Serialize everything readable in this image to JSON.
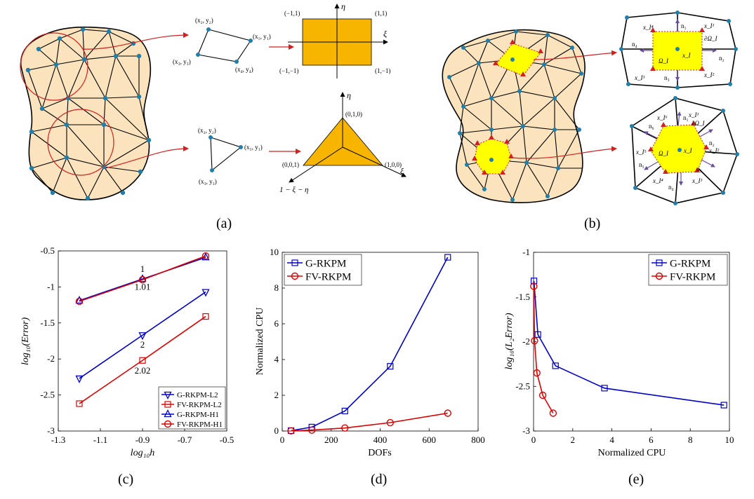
{
  "panel_labels": [
    "(a)",
    "(b)",
    "(c)",
    "(d)",
    "(e)"
  ],
  "panel_a": {
    "quad_nodes": [
      "(x₂, y₂)",
      "(x₁, y₁)",
      "(x₃, y₃)",
      "(x₄, y₄)"
    ],
    "tri_nodes": [
      "(x₂, y₂)",
      "(x₁, y₁)",
      "(x₃, y₃)"
    ],
    "quad_ref_corners": [
      "(−1,1)",
      "(1,1)",
      "(−1,−1)",
      "(1,−1)"
    ],
    "tri_ref_corners": [
      "(0,1,0)",
      "(0,0,1)",
      "(1,0,0)"
    ],
    "axis_eta": "η",
    "axis_xi": "ξ",
    "tri_third_axis": "1 − ξ − η"
  },
  "panel_b": {
    "quad_cell_labels": [
      "x_I⁴",
      "n₁",
      "x_I¹",
      "∂Ω_I",
      "n₄",
      "x_I",
      "n₂",
      "Ω_I",
      "x_I³",
      "n₃",
      "x_I²"
    ],
    "hex_cell_labels": [
      "x_I⁶",
      "x_I¹",
      "∂Ω_I",
      "n₆",
      "n₁",
      "x_I⁵",
      "x_I",
      "x_I²",
      "Ω_I",
      "n₅",
      "n₂",
      "x_I⁴",
      "n₄",
      "x_I³",
      "n₃"
    ]
  },
  "chart_data": [
    {
      "type": "line",
      "panel": "(c)",
      "xlabel": "log₁₀h",
      "ylabel": "log₁₀(Error)",
      "xlim": [
        -1.3,
        -0.5
      ],
      "ylim": [
        -3,
        -0.5
      ],
      "xticks": [
        "-1.3",
        "-1.1",
        "-0.9",
        "-0.7",
        "-0.5"
      ],
      "yticks": [
        "-0.5",
        "-1",
        "-1.5",
        "-2",
        "-2.5",
        "-3"
      ],
      "series": [
        {
          "name": "G-RKPM-L2",
          "color": "#0000cc",
          "marker": "triangle-down",
          "x": [
            -1.2,
            -0.9,
            -0.6
          ],
          "y": [
            -2.27,
            -1.67,
            -1.07
          ]
        },
        {
          "name": "FV-RKPM-L2",
          "color": "#dd0000",
          "marker": "square",
          "x": [
            -1.2,
            -0.9,
            -0.6
          ],
          "y": [
            -2.62,
            -2.02,
            -1.41
          ]
        },
        {
          "name": "G-RKPM-H1",
          "color": "#0000cc",
          "marker": "triangle-up",
          "x": [
            -1.2,
            -0.9,
            -0.6
          ],
          "y": [
            -1.19,
            -0.89,
            -0.59
          ]
        },
        {
          "name": "FV-RKPM-H1",
          "color": "#dd0000",
          "marker": "circle",
          "x": [
            -1.2,
            -0.9,
            -0.6
          ],
          "y": [
            -1.2,
            -0.9,
            -0.57
          ]
        }
      ],
      "annotations": [
        {
          "text": "1",
          "x": -0.9,
          "y": -0.79
        },
        {
          "text": "1.01",
          "x": -0.9,
          "y": -1.04
        },
        {
          "text": "2",
          "x": -0.9,
          "y": -1.84
        },
        {
          "text": "2.02",
          "x": -0.9,
          "y": -2.2
        }
      ],
      "legend": "bottom-right"
    },
    {
      "type": "line",
      "panel": "(d)",
      "xlabel": "DOFs",
      "ylabel": "Normalized CPU",
      "xlim": [
        0,
        800
      ],
      "ylim": [
        0,
        10
      ],
      "xticks": [
        "0",
        "200",
        "400",
        "600",
        "800"
      ],
      "yticks": [
        "10",
        "8",
        "6",
        "4",
        "2",
        "0"
      ],
      "series": [
        {
          "name": "G-RKPM",
          "color": "#0000cc",
          "marker": "square",
          "x": [
            36,
            121,
            256,
            441,
            676
          ],
          "y": [
            0.02,
            0.22,
            1.12,
            3.62,
            9.72
          ]
        },
        {
          "name": "FV-RKPM",
          "color": "#dd0000",
          "marker": "circle",
          "x": [
            36,
            121,
            256,
            441,
            676
          ],
          "y": [
            0.01,
            0.05,
            0.17,
            0.47,
            1.0
          ]
        }
      ],
      "legend": "top-left"
    },
    {
      "type": "line",
      "panel": "(e)",
      "xlabel": "Normalized CPU",
      "ylabel": "log₁₀(L₂Error)",
      "xlim": [
        0,
        10
      ],
      "ylim": [
        -3,
        -1
      ],
      "xticks": [
        "0",
        "2",
        "4",
        "6",
        "8",
        "10"
      ],
      "yticks": [
        "-1",
        "-1.5",
        "-2",
        "-2.5",
        "-3"
      ],
      "series": [
        {
          "name": "G-RKPM",
          "color": "#0000cc",
          "marker": "square",
          "x": [
            0.02,
            0.22,
            1.12,
            3.62,
            9.72
          ],
          "y": [
            -1.32,
            -1.92,
            -2.27,
            -2.52,
            -2.71
          ]
        },
        {
          "name": "FV-RKPM",
          "color": "#dd0000",
          "marker": "circle",
          "x": [
            0.01,
            0.05,
            0.17,
            0.47,
            1.0
          ],
          "y": [
            -1.38,
            -1.99,
            -2.35,
            -2.6,
            -2.8
          ]
        }
      ],
      "legend": "top-right"
    }
  ]
}
